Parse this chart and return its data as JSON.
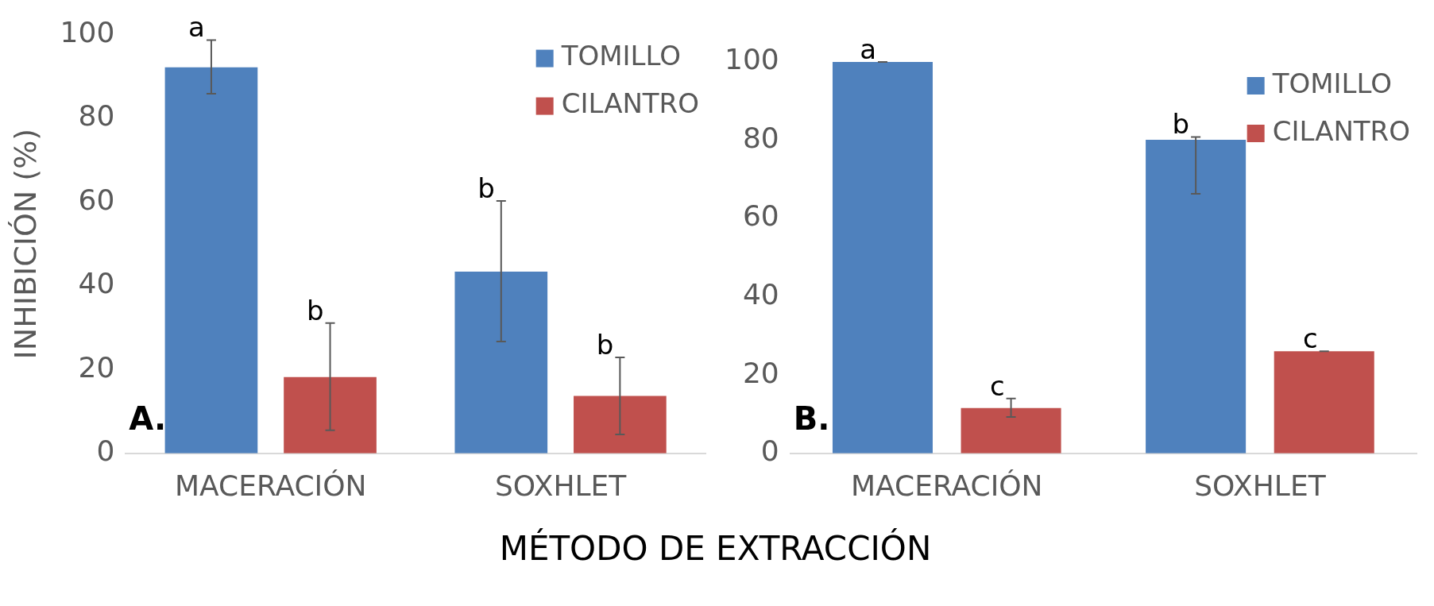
{
  "chart_data": [
    {
      "type": "bar",
      "ylabel": "INHIBICIÓN (%)",
      "xlabel": "MÉTODO DE EXTRACCIÓN",
      "categories": [
        "MACERACIÓN",
        "SOXHLET"
      ],
      "series": [
        {
          "name": "TOMILLO",
          "color": "#4f81bd",
          "values": [
            92.2,
            43.4
          ],
          "errors": [
            [
              85.9,
              98.7
            ],
            [
              26.7,
              60.3
            ]
          ],
          "value_labels": [
            "a",
            "b"
          ]
        },
        {
          "name": "CILANTRO",
          "color": "#c0504d",
          "values": [
            18.2,
            13.7
          ],
          "errors": [
            [
              5.5,
              31.1
            ],
            [
              4.5,
              22.9
            ]
          ],
          "value_labels": [
            "b",
            "b"
          ]
        }
      ],
      "ylim": [
        0,
        100
      ],
      "yticks": [
        0,
        20,
        40,
        60,
        80,
        100
      ],
      "grid": false,
      "legend": "top right",
      "annotations": [
        "A."
      ]
    },
    {
      "type": "bar",
      "categories": [
        "MACERACIÓN",
        "SOXHLET"
      ],
      "series": [
        {
          "name": "TOMILLO",
          "color": "#4f81bd",
          "values": [
            100,
            80.1
          ],
          "errors": [
            0,
            [
              66.3,
              80.8
            ]
          ],
          "value_labels": [
            "a",
            "b"
          ]
        },
        {
          "name": "CILANTRO",
          "color": "#c0504d",
          "values": [
            11.6,
            26.1
          ],
          "errors": [
            [
              9.3,
              14.0
            ],
            0
          ],
          "value_labels": [
            "c",
            "c"
          ]
        }
      ],
      "ylim": [
        0,
        100
      ],
      "yticks": [
        0,
        20,
        40,
        60,
        80,
        100
      ],
      "grid": false,
      "legend": "top right",
      "annotations": [
        "B."
      ]
    }
  ]
}
